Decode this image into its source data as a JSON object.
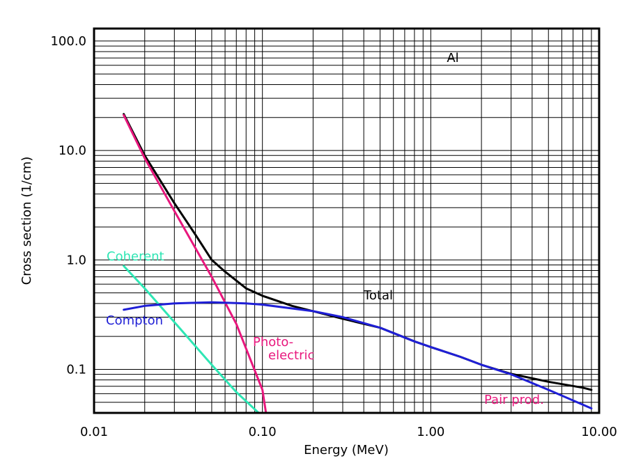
{
  "chart_data": {
    "type": "line",
    "title": "",
    "xlabel": "Energy (MeV)",
    "ylabel": "Cross section (1/cm)",
    "x_scale": "log",
    "y_scale": "log",
    "xlim": [
      0.01,
      10.0
    ],
    "ylim": [
      0.04,
      130
    ],
    "grid": true,
    "x_ticks": [
      {
        "value": 0.01,
        "label": "0.01"
      },
      {
        "value": 0.1,
        "label": "0.10"
      },
      {
        "value": 1.0,
        "label": "1.00"
      },
      {
        "value": 10.0,
        "label": "10.00"
      }
    ],
    "y_ticks": [
      {
        "value": 0.1,
        "label": "0.1"
      },
      {
        "value": 1.0,
        "label": "1.0"
      },
      {
        "value": 10.0,
        "label": "10.0"
      },
      {
        "value": 100.0,
        "label": "100.0"
      }
    ],
    "annotation": "Al",
    "series": [
      {
        "name": "Total",
        "color": "#000000",
        "x": [
          0.015,
          0.02,
          0.03,
          0.04,
          0.05,
          0.06,
          0.08,
          0.1,
          0.15,
          0.2,
          0.3,
          0.5,
          0.8,
          1.0,
          1.5,
          2.0,
          3.0,
          5.0,
          8.0,
          9.0
        ],
        "y": [
          21.5,
          9.0,
          3.3,
          1.7,
          1.0,
          0.78,
          0.55,
          0.47,
          0.38,
          0.34,
          0.29,
          0.24,
          0.18,
          0.16,
          0.13,
          0.11,
          0.091,
          0.077,
          0.068,
          0.065
        ]
      },
      {
        "name": "Photo-electric",
        "color": "#e8177d",
        "x": [
          0.015,
          0.02,
          0.03,
          0.05,
          0.07,
          0.1,
          0.105
        ],
        "y": [
          21.0,
          8.5,
          2.8,
          0.7,
          0.26,
          0.065,
          0.04
        ]
      },
      {
        "name": "Coherent",
        "color": "#2ee6b4",
        "x": [
          0.015,
          0.02,
          0.03,
          0.05,
          0.07,
          0.095
        ],
        "y": [
          0.88,
          0.55,
          0.27,
          0.11,
          0.062,
          0.04
        ]
      },
      {
        "name": "Compton",
        "color": "#1f1fd6",
        "x": [
          0.015,
          0.02,
          0.03,
          0.05,
          0.08,
          0.1,
          0.2,
          0.3,
          0.5,
          0.8,
          1.0,
          1.5,
          2.0,
          3.0,
          5.0,
          9.0
        ],
        "y": [
          0.35,
          0.38,
          0.4,
          0.41,
          0.4,
          0.39,
          0.34,
          0.3,
          0.24,
          0.18,
          0.16,
          0.13,
          0.11,
          0.09,
          0.065,
          0.044
        ]
      }
    ],
    "labels": [
      {
        "text": "Total",
        "color": "#000000"
      },
      {
        "text": "Photo-",
        "color": "#e8177d"
      },
      {
        "text": "electric",
        "color": "#e8177d"
      },
      {
        "text": "Coherent",
        "color": "#2ee6b4"
      },
      {
        "text": "Compton",
        "color": "#1f1fd6"
      },
      {
        "text": "Pair prod.",
        "color": "#e8177d"
      }
    ]
  }
}
